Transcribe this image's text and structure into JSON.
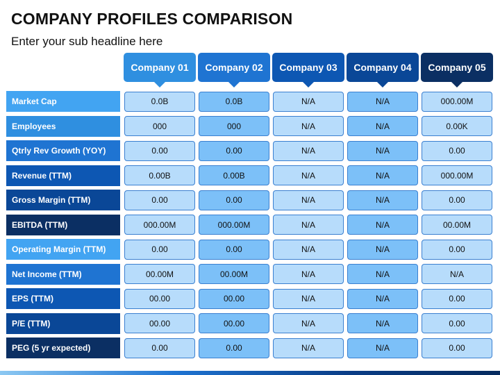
{
  "header": {
    "title": "COMPANY PROFILES COMPARISON",
    "subtitle": "Enter your sub headline here"
  },
  "companies": [
    "Company 01",
    "Company 02",
    "Company 03",
    "Company 04",
    "Company 05"
  ],
  "metrics": [
    "Market Cap",
    "Employees",
    "Qtrly Rev Growth (YOY)",
    "Revenue (TTM)",
    "Gross Margin (TTM)",
    "EBITDA (TTM)",
    "Operating Margin (TTM)",
    "Net Income (TTM)",
    "EPS (TTM)",
    "P/E (TTM)",
    "PEG (5 yr expected)"
  ],
  "rows": [
    [
      "0.0B",
      "0.0B",
      "N/A",
      "N/A",
      "000.00M"
    ],
    [
      "000",
      "000",
      "N/A",
      "N/A",
      "0.00K"
    ],
    [
      "0.00",
      "0.00",
      "N/A",
      "N/A",
      "0.00"
    ],
    [
      "0.00B",
      "0.00B",
      "N/A",
      "N/A",
      "000.00M"
    ],
    [
      "0.00",
      "0.00",
      "N/A",
      "N/A",
      "0.00"
    ],
    [
      "000.00M",
      "000.00M",
      "N/A",
      "N/A",
      "00.00M"
    ],
    [
      "0.00",
      "0.00",
      "N/A",
      "N/A",
      "0.00"
    ],
    [
      "00.00M",
      "00.00M",
      "N/A",
      "N/A",
      "N/A"
    ],
    [
      "00.00",
      "00.00",
      "N/A",
      "N/A",
      "0.00"
    ],
    [
      "00.00",
      "00.00",
      "N/A",
      "N/A",
      "0.00"
    ],
    [
      "0.00",
      "0.00",
      "N/A",
      "N/A",
      "0.00"
    ]
  ],
  "colors": {
    "company_headers": [
      "#2f8fe0",
      "#1f74d2",
      "#0d57b3",
      "#0a4797",
      "#0b2f63"
    ],
    "cell_fills": [
      "#b7dcfb",
      "#7cc0f8",
      "#b7dcfb",
      "#7cc0f8",
      "#b7dcfb"
    ],
    "metric_labels": [
      "#42a4f2",
      "#2f8fe0",
      "#1f74d2",
      "#0d57b3",
      "#0a4797",
      "#0b2f63",
      "#42a4f2",
      "#1f74d2",
      "#0d57b3",
      "#0a4797",
      "#0b2f63"
    ]
  }
}
